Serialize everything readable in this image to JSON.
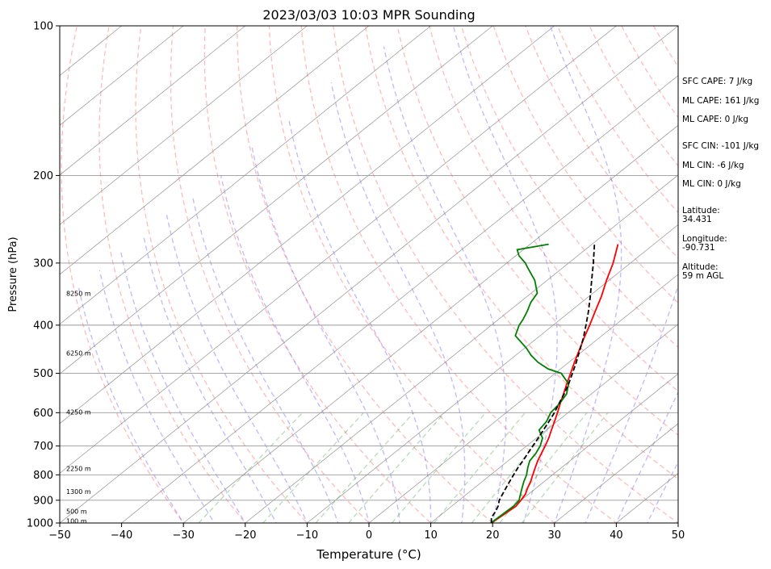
{
  "chart_data": {
    "type": "line",
    "title": "2023/03/03 10:03 MPR Sounding",
    "xlabel": "Temperature (°C)",
    "ylabel": "Pressure (hPa)",
    "xlim": [
      -50,
      50
    ],
    "ylim": [
      1000,
      100
    ],
    "y_scale": "log",
    "grid": true,
    "x_ticks": [
      "−50",
      "−40",
      "−30",
      "−20",
      "−10",
      "0",
      "10",
      "20",
      "30",
      "40",
      "50"
    ],
    "y_ticks": [
      {
        "p": 100,
        "label": "100"
      },
      {
        "p": 200,
        "label": "200"
      },
      {
        "p": 300,
        "label": "300"
      },
      {
        "p": 400,
        "label": "400"
      },
      {
        "p": 500,
        "label": "500"
      },
      {
        "p": 600,
        "label": "600"
      },
      {
        "p": 700,
        "label": "700"
      },
      {
        "p": 800,
        "label": "800"
      },
      {
        "p": 900,
        "label": "900"
      },
      {
        "p": 1000,
        "label": "1000"
      }
    ],
    "height_labels": [
      {
        "p": 345,
        "label": "8250 m"
      },
      {
        "p": 455,
        "label": "6250 m"
      },
      {
        "p": 598,
        "label": "4250 m"
      },
      {
        "p": 777,
        "label": "2250 m"
      },
      {
        "p": 865,
        "label": "1300 m"
      },
      {
        "p": 947,
        "label": "500 m"
      },
      {
        "p": 990,
        "label": "100 m"
      }
    ],
    "series": [
      {
        "key": "temperature",
        "color": "#ff0000",
        "points": [
          [
            1000,
            19.8
          ],
          [
            975,
            20.0
          ],
          [
            950,
            20.2
          ],
          [
            925,
            20.4
          ],
          [
            900,
            20.0
          ],
          [
            875,
            19.5
          ],
          [
            850,
            18.6
          ],
          [
            825,
            17.8
          ],
          [
            800,
            16.8
          ],
          [
            775,
            15.8
          ],
          [
            750,
            14.8
          ],
          [
            725,
            13.9
          ],
          [
            700,
            13.0
          ],
          [
            675,
            12.0
          ],
          [
            650,
            10.8
          ],
          [
            625,
            9.6
          ],
          [
            600,
            8.3
          ],
          [
            575,
            6.9
          ],
          [
            550,
            5.5
          ],
          [
            525,
            4.0
          ],
          [
            500,
            2.5
          ],
          [
            475,
            0.9
          ],
          [
            450,
            -0.7
          ],
          [
            425,
            -2.4
          ],
          [
            400,
            -4.1
          ],
          [
            375,
            -6.0
          ],
          [
            350,
            -8.0
          ],
          [
            325,
            -10.4
          ],
          [
            300,
            -12.8
          ],
          [
            275,
            -15.8
          ]
        ]
      },
      {
        "key": "dewpoint",
        "color": "#008000",
        "points": [
          [
            1000,
            19.7
          ],
          [
            975,
            19.8
          ],
          [
            950,
            19.9
          ],
          [
            925,
            20.0
          ],
          [
            900,
            19.7
          ],
          [
            875,
            18.7
          ],
          [
            850,
            17.7
          ],
          [
            825,
            16.7
          ],
          [
            800,
            15.8
          ],
          [
            775,
            14.6
          ],
          [
            750,
            13.5
          ],
          [
            725,
            13.0
          ],
          [
            700,
            12.2
          ],
          [
            675,
            11.0
          ],
          [
            650,
            8.8
          ],
          [
            625,
            8.3
          ],
          [
            600,
            7.2
          ],
          [
            575,
            6.8
          ],
          [
            550,
            6.0
          ],
          [
            525,
            4.3
          ],
          [
            500,
            1.0
          ],
          [
            490,
            -2.0
          ],
          [
            475,
            -5.0
          ],
          [
            460,
            -7.5
          ],
          [
            445,
            -9.7
          ],
          [
            420,
            -14.0
          ],
          [
            400,
            -15.5
          ],
          [
            390,
            -16.0
          ],
          [
            375,
            -17.0
          ],
          [
            360,
            -18.2
          ],
          [
            345,
            -19.0
          ],
          [
            325,
            -22.0
          ],
          [
            305,
            -26.0
          ],
          [
            300,
            -27.0
          ],
          [
            290,
            -29.5
          ],
          [
            282,
            -31.0
          ],
          [
            275,
            -27.0
          ]
        ]
      },
      {
        "key": "parcel",
        "color": "#000000",
        "points": [
          [
            1000,
            19.8
          ],
          [
            975,
            18.7
          ],
          [
            950,
            18.2
          ],
          [
            925,
            17.5
          ],
          [
            900,
            16.5
          ],
          [
            875,
            15.8
          ],
          [
            850,
            15.1
          ],
          [
            825,
            14.4
          ],
          [
            800,
            13.7
          ],
          [
            775,
            13.0
          ],
          [
            750,
            12.4
          ],
          [
            725,
            11.7
          ],
          [
            700,
            11.0
          ],
          [
            675,
            10.3
          ],
          [
            650,
            9.5
          ],
          [
            625,
            8.7
          ],
          [
            600,
            7.8
          ],
          [
            575,
            6.7
          ],
          [
            550,
            5.6
          ],
          [
            525,
            4.3
          ],
          [
            500,
            2.8
          ],
          [
            475,
            1.2
          ],
          [
            450,
            -0.6
          ],
          [
            425,
            -2.5
          ],
          [
            400,
            -4.7
          ],
          [
            375,
            -7.1
          ],
          [
            350,
            -9.8
          ],
          [
            325,
            -12.8
          ],
          [
            300,
            -16.0
          ],
          [
            275,
            -19.6
          ]
        ]
      }
    ],
    "stats_panel": [
      {
        "label": "SFC CAPE: 7 J/kg"
      },
      {
        "label": "ML CAPE: 161 J/kg"
      },
      {
        "label": "ML CAPE: 0 J/kg"
      },
      {
        "label": "SFC CIN: -101 J/kg"
      },
      {
        "label": "ML CIN: -6 J/kg"
      },
      {
        "label": "ML CIN: 0 J/kg"
      },
      {
        "label": "Latitude:",
        "value": "34.431"
      },
      {
        "label": "Longitude:",
        "value": "-90.731"
      },
      {
        "label": "Altitude:",
        "value": "59 m AGL"
      }
    ]
  }
}
